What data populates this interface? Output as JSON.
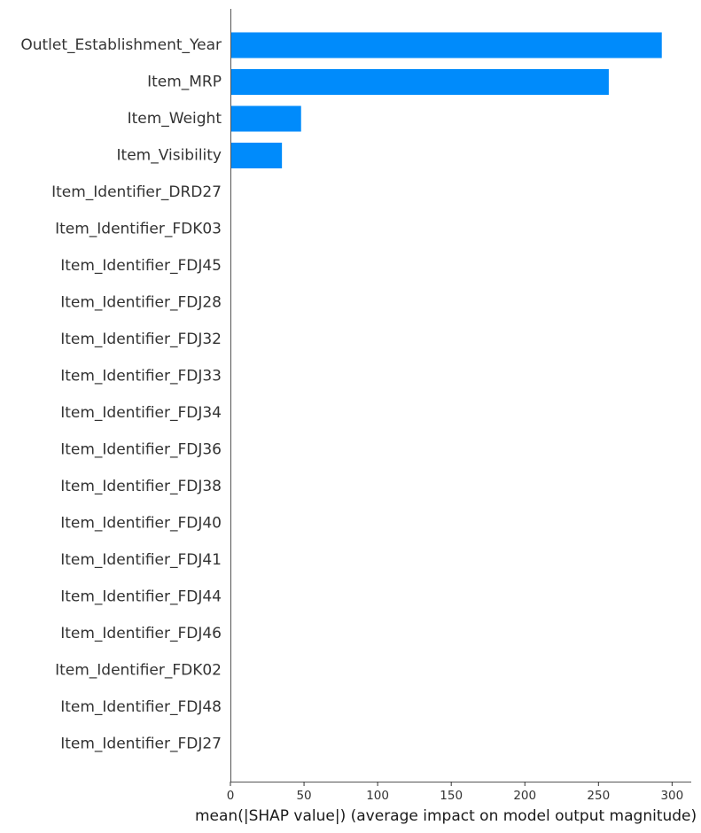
{
  "chart_data": {
    "type": "bar",
    "orientation": "horizontal",
    "categories": [
      "Outlet_Establishment_Year",
      "Item_MRP",
      "Item_Weight",
      "Item_Visibility",
      "Item_Identifier_DRD27",
      "Item_Identifier_FDK03",
      "Item_Identifier_FDJ45",
      "Item_Identifier_FDJ28",
      "Item_Identifier_FDJ32",
      "Item_Identifier_FDJ33",
      "Item_Identifier_FDJ34",
      "Item_Identifier_FDJ36",
      "Item_Identifier_FDJ38",
      "Item_Identifier_FDJ40",
      "Item_Identifier_FDJ41",
      "Item_Identifier_FDJ44",
      "Item_Identifier_FDJ46",
      "Item_Identifier_FDK02",
      "Item_Identifier_FDJ48",
      "Item_Identifier_FDJ27"
    ],
    "values": [
      293,
      257,
      48,
      35,
      0,
      0,
      0,
      0,
      0,
      0,
      0,
      0,
      0,
      0,
      0,
      0,
      0,
      0,
      0,
      0
    ],
    "xlabel": "mean(|SHAP value|) (average impact on model output magnitude)",
    "xticks": [
      0,
      50,
      100,
      150,
      200,
      250,
      300
    ],
    "xlim": [
      0,
      307
    ],
    "grid": false,
    "bar_color": "#008bfb"
  }
}
